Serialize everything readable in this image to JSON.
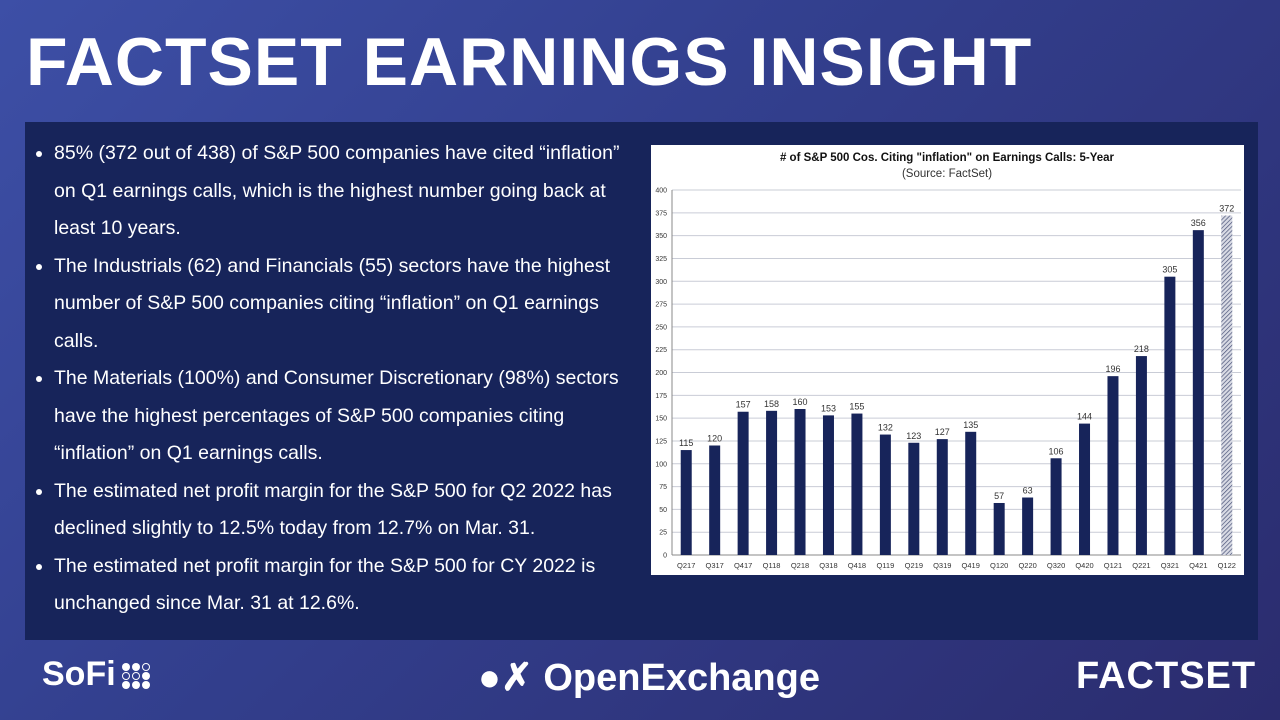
{
  "header": {
    "title": "FACTSET EARNINGS INSIGHT"
  },
  "bullets": [
    "85% (372 out of 438) of S&P 500 companies have cited “inflation” on Q1 earnings calls, which is the highest number going back at least 10 years.",
    "The Industrials (62) and Financials (55) sectors have the highest number of S&P 500 companies citing “inflation” on Q1 earnings calls.",
    "The Materials (100%) and Consumer Discretionary (98%) sectors have the highest percentages of S&P 500 companies citing “inflation” on Q1 earnings calls.",
    "The estimated net profit margin for the S&P 500 for Q2 2022 has declined slightly to 12.5% today from 12.7% on Mar. 31.",
    "The estimated net profit margin for the S&P 500 for CY 2022 is unchanged since Mar. 31 at 12.6%."
  ],
  "chart_data": {
    "type": "bar",
    "title": "# of S&P 500 Cos. Citing \"inflation\" on Earnings Calls: 5-Year",
    "subtitle": "(Source: FactSet)",
    "xlabel": "",
    "ylabel": "",
    "ylim": [
      0,
      400
    ],
    "yticks": [
      0,
      25,
      50,
      75,
      100,
      125,
      150,
      175,
      200,
      225,
      250,
      275,
      300,
      325,
      350,
      375,
      400
    ],
    "grid": true,
    "categories": [
      "Q217",
      "Q317",
      "Q417",
      "Q118",
      "Q218",
      "Q318",
      "Q418",
      "Q119",
      "Q219",
      "Q319",
      "Q419",
      "Q120",
      "Q220",
      "Q320",
      "Q420",
      "Q121",
      "Q221",
      "Q321",
      "Q421",
      "Q122"
    ],
    "values": [
      115,
      120,
      157,
      158,
      160,
      153,
      155,
      132,
      123,
      127,
      135,
      57,
      63,
      106,
      144,
      196,
      218,
      305,
      356,
      372
    ],
    "highlight_last": true,
    "colors": {
      "bar": "#17245a",
      "highlight": "#9aa0b8"
    }
  },
  "footer": {
    "sofi": "SoFi",
    "openexchange": "OpenExchange",
    "factset": "FACTSET"
  }
}
